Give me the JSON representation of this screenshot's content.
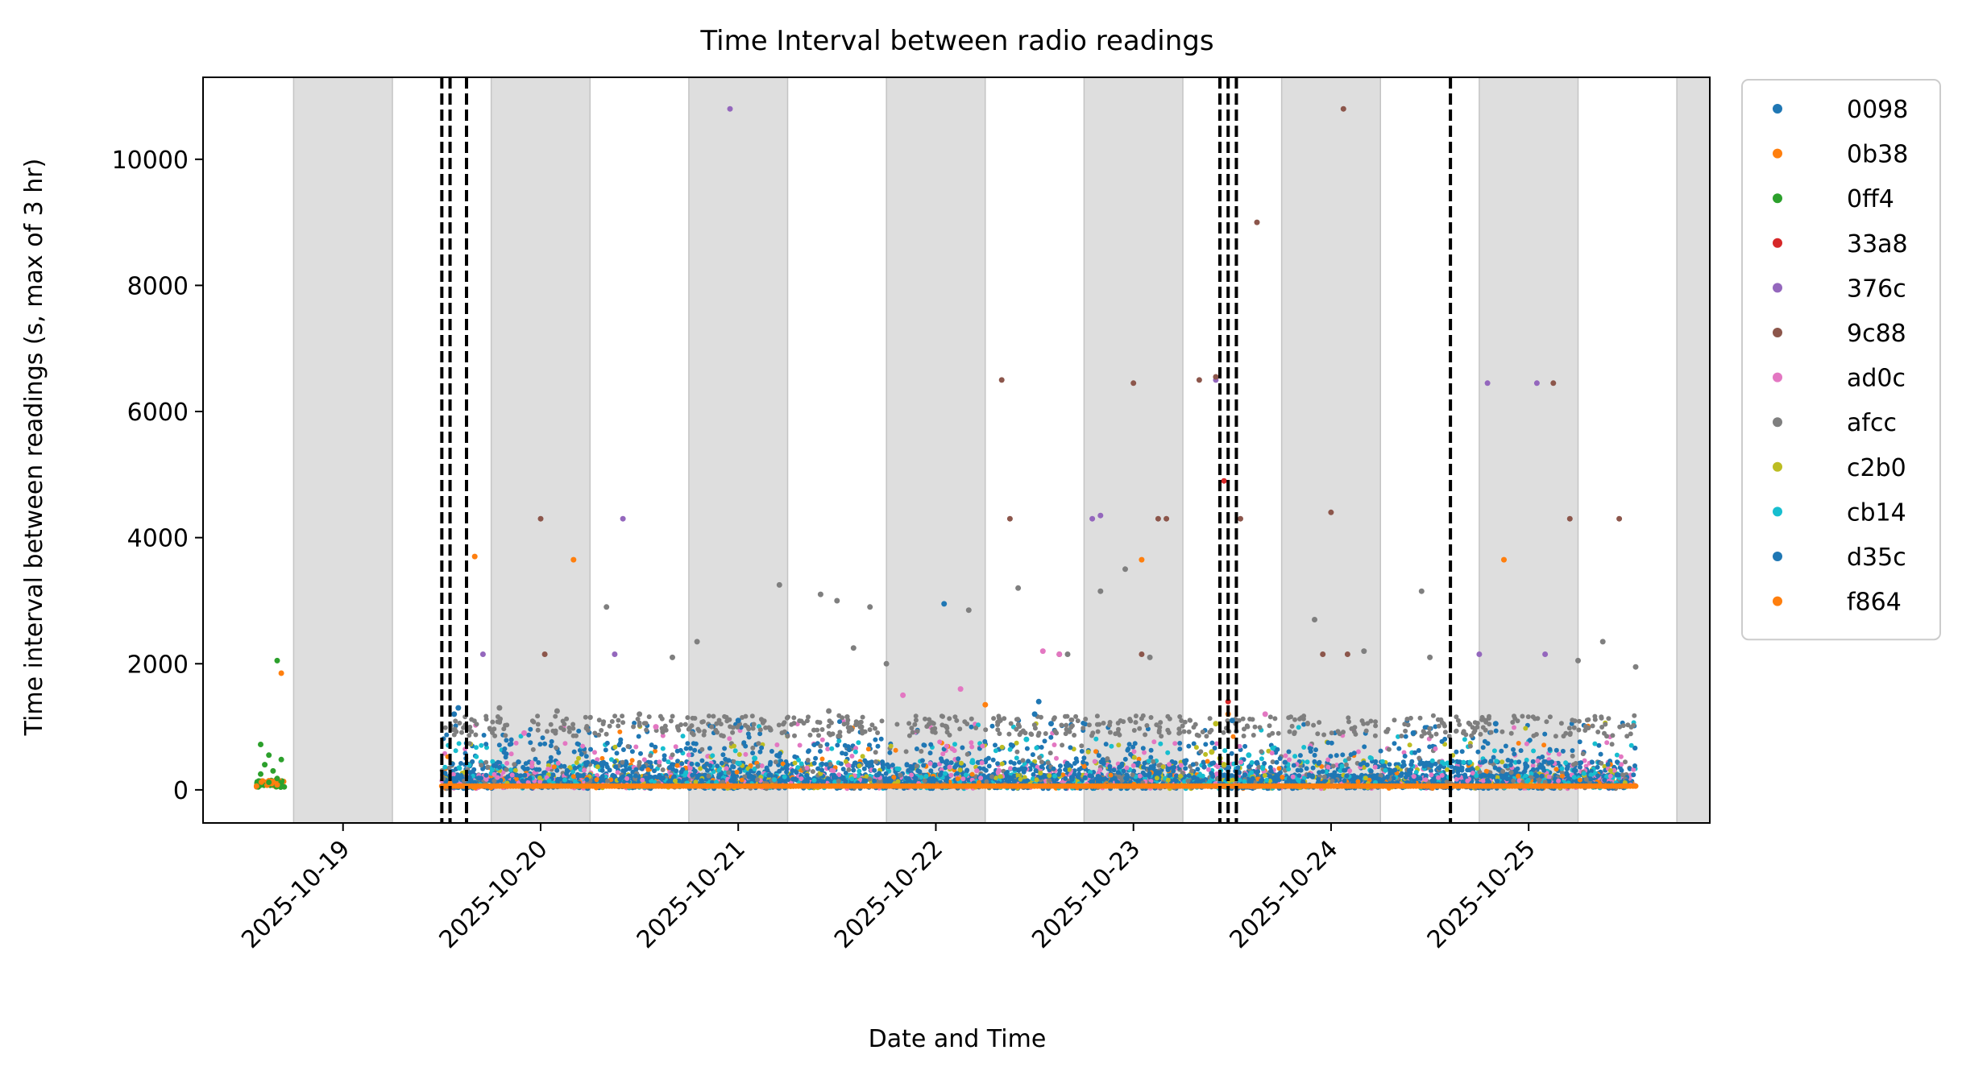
{
  "chart_data": {
    "type": "scatter",
    "title": "Time Interval between radio readings",
    "xlabel": "Date and Time",
    "ylabel": "Time interval between readings (s, max of 3 hr)",
    "xlim": [
      "2025-10-18 07:00",
      "2025-10-25 22:00"
    ],
    "ylim": [
      -525,
      11300
    ],
    "x_ticks": [
      "2025-10-19",
      "2025-10-20",
      "2025-10-21",
      "2025-10-22",
      "2025-10-23",
      "2025-10-24",
      "2025-10-25"
    ],
    "y_ticks": [
      0,
      2000,
      4000,
      6000,
      8000,
      10000
    ],
    "grid": false,
    "legend_position": "outside-right",
    "night_shading": [
      [
        "2025-10-18 18:00",
        "2025-10-19 06:00"
      ],
      [
        "2025-10-19 18:00",
        "2025-10-20 06:00"
      ],
      [
        "2025-10-20 18:00",
        "2025-10-21 06:00"
      ],
      [
        "2025-10-21 18:00",
        "2025-10-22 06:00"
      ],
      [
        "2025-10-22 18:00",
        "2025-10-23 06:00"
      ],
      [
        "2025-10-23 18:00",
        "2025-10-24 06:00"
      ],
      [
        "2025-10-24 18:00",
        "2025-10-25 06:00"
      ],
      [
        "2025-10-25 18:00",
        "2025-10-25 22:00"
      ]
    ],
    "event_lines": [
      "2025-10-19 12:00",
      "2025-10-19 13:00",
      "2025-10-19 15:00",
      "2025-10-23 10:30",
      "2025-10-23 11:30",
      "2025-10-23 12:30",
      "2025-10-24 14:30"
    ],
    "dense_band": {
      "start": "2025-10-19 12:00",
      "end": "2025-10-25 13:00",
      "ymin": 0,
      "ymax": 600
    },
    "series": [
      {
        "name": "0098",
        "color": "#1f77b4",
        "points": [
          [
            "2025-10-19 14:00",
            1300
          ],
          [
            "2025-10-21 00:00",
            1100
          ],
          [
            "2025-10-22 01:00",
            2950
          ],
          [
            "2025-10-22 12:30",
            1400
          ],
          [
            "2025-10-22 12:00",
            1200
          ],
          [
            "2025-10-23 12:00",
            1100
          ],
          [
            "2025-10-24 20:00",
            1050
          ]
        ]
      },
      {
        "name": "0b38",
        "color": "#ff7f0e",
        "points": [
          [
            "2025-10-19 16:00",
            3700
          ],
          [
            "2025-10-20 04:00",
            3650
          ],
          [
            "2025-10-23 01:00",
            3650
          ],
          [
            "2025-10-24 21:00",
            3650
          ],
          [
            "2025-10-22 06:00",
            1350
          ],
          [
            "2025-10-23 11:30",
            1200
          ]
        ]
      },
      {
        "name": "0ff4",
        "color": "#2ca02c",
        "points": [
          [
            "2025-10-18 14:00",
            720
          ],
          [
            "2025-10-18 15:00",
            550
          ],
          [
            "2025-10-18 14:30",
            400
          ],
          [
            "2025-10-18 15:30",
            300
          ],
          [
            "2025-10-18 14:00",
            250
          ],
          [
            "2025-10-18 16:00",
            180
          ],
          [
            "2025-10-18 16:00",
            2050
          ],
          [
            "2025-10-18 15:00",
            120
          ],
          [
            "2025-10-18 16:30",
            480
          ]
        ]
      },
      {
        "name": "33a8",
        "color": "#d62728",
        "points": [
          [
            "2025-10-23 11:00",
            4900
          ],
          [
            "2025-10-23 11:30",
            1400
          ]
        ]
      },
      {
        "name": "376c",
        "color": "#9467bd",
        "points": [
          [
            "2025-10-20 23:00",
            10800
          ],
          [
            "2025-10-20 10:00",
            4300
          ],
          [
            "2025-10-19 17:00",
            2150
          ],
          [
            "2025-10-20 09:00",
            2150
          ],
          [
            "2025-10-22 19:00",
            4300
          ],
          [
            "2025-10-22 20:00",
            4350
          ],
          [
            "2025-10-23 10:00",
            6500
          ],
          [
            "2025-10-24 19:00",
            6450
          ],
          [
            "2025-10-25 01:00",
            6450
          ],
          [
            "2025-10-24 18:00",
            2150
          ],
          [
            "2025-10-25 02:00",
            2150
          ]
        ]
      },
      {
        "name": "9c88",
        "color": "#8c564b",
        "points": [
          [
            "2025-10-20 00:00",
            4300
          ],
          [
            "2025-10-20 00:30",
            2150
          ],
          [
            "2025-10-22 08:00",
            6500
          ],
          [
            "2025-10-22 09:00",
            4300
          ],
          [
            "2025-10-23 00:00",
            6450
          ],
          [
            "2025-10-23 08:00",
            6500
          ],
          [
            "2025-10-23 10:00",
            6550
          ],
          [
            "2025-10-23 13:00",
            4300
          ],
          [
            "2025-10-23 15:00",
            9000
          ],
          [
            "2025-10-24 01:30",
            10800
          ],
          [
            "2025-10-24 00:00",
            4400
          ],
          [
            "2025-10-23 23:00",
            2150
          ],
          [
            "2025-10-24 02:00",
            2150
          ],
          [
            "2025-10-25 03:00",
            6450
          ],
          [
            "2025-10-25 05:00",
            4300
          ],
          [
            "2025-10-25 11:00",
            4300
          ],
          [
            "2025-10-23 01:00",
            2150
          ],
          [
            "2025-10-22 15:00",
            2150
          ],
          [
            "2025-10-23 03:00",
            4300
          ],
          [
            "2025-10-23 04:00",
            4300
          ]
        ]
      },
      {
        "name": "ad0c",
        "color": "#e377c2",
        "points": [
          [
            "2025-10-21 20:00",
            1500
          ],
          [
            "2025-10-22 03:00",
            1600
          ],
          [
            "2025-10-22 13:00",
            2200
          ],
          [
            "2025-10-22 15:00",
            2150
          ],
          [
            "2025-10-23 16:00",
            1200
          ],
          [
            "2025-10-20 14:00",
            1000
          ],
          [
            "2025-10-19 22:00",
            900
          ]
        ]
      },
      {
        "name": "afcc",
        "color": "#7f7f7f",
        "points": [
          [
            "2025-10-20 08:00",
            2900
          ],
          [
            "2025-10-20 16:00",
            2100
          ],
          [
            "2025-10-20 19:00",
            2350
          ],
          [
            "2025-10-21 05:00",
            3250
          ],
          [
            "2025-10-21 10:00",
            3100
          ],
          [
            "2025-10-21 12:00",
            3000
          ],
          [
            "2025-10-21 14:00",
            2250
          ],
          [
            "2025-10-21 16:00",
            2900
          ],
          [
            "2025-10-21 18:00",
            2000
          ],
          [
            "2025-10-22 04:00",
            2850
          ],
          [
            "2025-10-22 10:00",
            3200
          ],
          [
            "2025-10-22 16:00",
            2150
          ],
          [
            "2025-10-22 20:00",
            3150
          ],
          [
            "2025-10-22 23:00",
            3500
          ],
          [
            "2025-10-23 02:00",
            2100
          ],
          [
            "2025-10-23 22:00",
            2700
          ],
          [
            "2025-10-24 11:00",
            3150
          ],
          [
            "2025-10-24 12:00",
            2100
          ],
          [
            "2025-10-25 06:00",
            2050
          ],
          [
            "2025-10-25 09:00",
            2350
          ],
          [
            "2025-10-25 13:00",
            1950
          ],
          [
            "2025-10-19 19:00",
            1300
          ],
          [
            "2025-10-20 02:00",
            1250
          ],
          [
            "2025-10-24 04:00",
            2200
          ],
          [
            "2025-10-21 11:00",
            1250
          ],
          [
            "2025-10-20 12:00",
            1200
          ]
        ]
      },
      {
        "name": "c2b0",
        "color": "#bcbd22",
        "points": [
          [
            "2025-10-23 10:00",
            1050
          ],
          [
            "2025-10-23 09:30",
            600
          ],
          [
            "2025-10-23 10:30",
            500
          ],
          [
            "2025-10-23 11:00",
            400
          ]
        ]
      },
      {
        "name": "cb14",
        "color": "#17becf",
        "points": [
          [
            "2025-10-22 11:00",
            800
          ],
          [
            "2025-10-21 02:00",
            500
          ],
          [
            "2025-10-23 14:00",
            550
          ]
        ]
      },
      {
        "name": "d35c",
        "color": "#1f77b4",
        "points": [
          [
            "2025-10-19 13:30",
            1200
          ],
          [
            "2025-10-22 14:00",
            1050
          ],
          [
            "2025-10-24 10:00",
            900
          ]
        ]
      },
      {
        "name": "f864",
        "color": "#ff7f0e",
        "points": [
          [
            "2025-10-18 13:30",
            60
          ],
          [
            "2025-10-18 16:30",
            1850
          ],
          [
            "2025-10-18 16:00",
            80
          ]
        ]
      }
    ]
  }
}
